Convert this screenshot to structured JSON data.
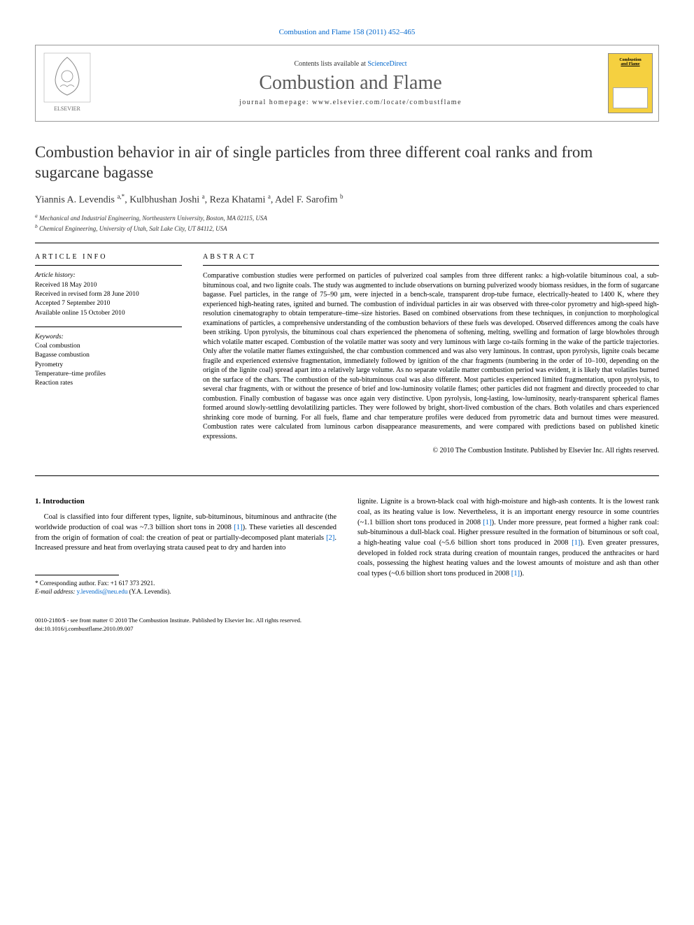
{
  "citation": "Combustion and Flame 158 (2011) 452–465",
  "contents_prefix": "Contents lists available at ",
  "contents_link": "ScienceDirect",
  "journal_name": "Combustion and Flame",
  "homepage_label": "journal homepage: www.elsevier.com/locate/combustflame",
  "cover": {
    "line1": "Combustion",
    "line2": "and Flame"
  },
  "title": "Combustion behavior in air of single particles from three different coal ranks and from sugarcane bagasse",
  "authors_html": "Yiannis A. Levendis <sup>a,*</sup>, Kulbhushan Joshi <sup>a</sup>, Reza Khatami <sup>a</sup>, Adel F. Sarofim <sup>b</sup>",
  "affiliations": [
    "a Mechanical and Industrial Engineering, Northeastern University, Boston, MA 02115, USA",
    "b Chemical Engineering, University of Utah, Salt Lake City, UT 84112, USA"
  ],
  "info_heading": "ARTICLE INFO",
  "history_label": "Article history:",
  "history": [
    "Received 18 May 2010",
    "Received in revised form 28 June 2010",
    "Accepted 7 September 2010",
    "Available online 15 October 2010"
  ],
  "keywords_label": "Keywords:",
  "keywords": [
    "Coal combustion",
    "Bagasse combustion",
    "Pyrometry",
    "Temperature–time profiles",
    "Reaction rates"
  ],
  "abstract_heading": "ABSTRACT",
  "abstract": "Comparative combustion studies were performed on particles of pulverized coal samples from three different ranks: a high-volatile bituminous coal, a sub-bituminous coal, and two lignite coals. The study was augmented to include observations on burning pulverized woody biomass residues, in the form of sugarcane bagasse. Fuel particles, in the range of 75–90 µm, were injected in a bench-scale, transparent drop-tube furnace, electrically-heated to 1400 K, where they experienced high-heating rates, ignited and burned. The combustion of individual particles in air was observed with three-color pyrometry and high-speed high-resolution cinematography to obtain temperature–time–size histories. Based on combined observations from these techniques, in conjunction to morphological examinations of particles, a comprehensive understanding of the combustion behaviors of these fuels was developed. Observed differences among the coals have been striking. Upon pyrolysis, the bituminous coal chars experienced the phenomena of softening, melting, swelling and formation of large blowholes through which volatile matter escaped. Combustion of the volatile matter was sooty and very luminous with large co-tails forming in the wake of the particle trajectories. Only after the volatile matter flames extinguished, the char combustion commenced and was also very luminous. In contrast, upon pyrolysis, lignite coals became fragile and experienced extensive fragmentation, immediately followed by ignition of the char fragments (numbering in the order of 10–100, depending on the origin of the lignite coal) spread apart into a relatively large volume. As no separate volatile matter combustion period was evident, it is likely that volatiles burned on the surface of the chars. The combustion of the sub-bituminous coal was also different. Most particles experienced limited fragmentation, upon pyrolysis, to several char fragments, with or without the presence of brief and low-luminosity volatile flames; other particles did not fragment and directly proceeded to char combustion. Finally combustion of bagasse was once again very distinctive. Upon pyrolysis, long-lasting, low-luminosity, nearly-transparent spherical flames formed around slowly-settling devolatilizing particles. They were followed by bright, short-lived combustion of the chars. Both volatiles and chars experienced shrinking core mode of burning. For all fuels, flame and char temperature profiles were deduced from pyrometric data and burnout times were measured. Combustion rates were calculated from luminous carbon disappearance measurements, and were compared with predictions based on published kinetic expressions.",
  "abstract_copyright": "© 2010 The Combustion Institute. Published by Elsevier Inc. All rights reserved.",
  "intro_heading": "1. Introduction",
  "intro_left": "Coal is classified into four different types, lignite, sub-bituminous, bituminous and anthracite (the worldwide production of coal was ~7.3 billion short tons in 2008 [1]). These varieties all descended from the origin of formation of coal: the creation of peat or partially-decomposed plant materials [2]. Increased pressure and heat from overlaying strata caused peat to dry and harden into",
  "intro_right": "lignite. Lignite is a brown-black coal with high-moisture and high-ash contents. It is the lowest rank coal, as its heating value is low. Nevertheless, it is an important energy resource in some countries (~1.1 billion short tons produced in 2008 [1]). Under more pressure, peat formed a higher rank coal: sub-bituminous a dull-black coal. Higher pressure resulted in the formation of bituminous or soft coal, a high-heating value coal (~5.6 billion short tons produced in 2008 [1]). Even greater pressures, developed in folded rock strata during creation of mountain ranges, produced the anthracites or hard coals, possessing the highest heating values and the lowest amounts of moisture and ash than other coal types (~0.6 billion short tons produced in 2008 [1]).",
  "corresp_label": "* Corresponding author. Fax: +1 617 373 2921.",
  "email_label": "E-mail address:",
  "email": "y.levendis@neu.edu",
  "email_attr": " (Y.A. Levendis).",
  "footer1": "0010-2180/$ - see front matter © 2010 The Combustion Institute. Published by Elsevier Inc. All rights reserved.",
  "footer2": "doi:10.1016/j.combustflame.2010.09.007",
  "colors": {
    "link": "#0066cc",
    "cover_bg": "#f5d040",
    "text": "#000000",
    "title": "#333333"
  }
}
